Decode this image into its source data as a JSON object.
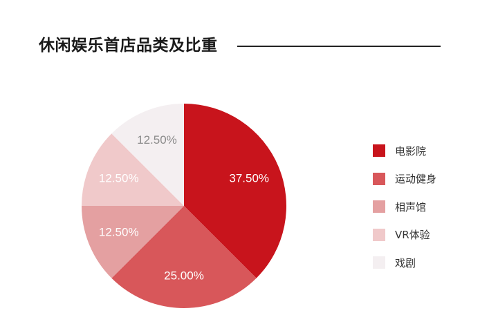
{
  "header": {
    "title": "休闲娱乐首店品类及比重"
  },
  "chart_data": {
    "type": "pie",
    "title": "休闲娱乐首店品类及比重",
    "categories": [
      "电影院",
      "运动健身",
      "相声馆",
      "VR体验",
      "戏剧"
    ],
    "values": [
      37.5,
      25.0,
      12.5,
      12.5,
      12.5
    ],
    "value_labels": [
      "37.50%",
      "25.00%",
      "12.50%",
      "12.50%",
      "12.50%"
    ],
    "colors": [
      "#c8141c",
      "#d8575a",
      "#e4a0a1",
      "#f0c9ca",
      "#f4eff1"
    ],
    "label_colors": [
      "#ffffff",
      "#ffffff",
      "#ffffff",
      "#ffffff",
      "#8a8a8a"
    ],
    "start_angle": "12 o'clock",
    "direction": "clockwise",
    "legend_position": "right"
  }
}
